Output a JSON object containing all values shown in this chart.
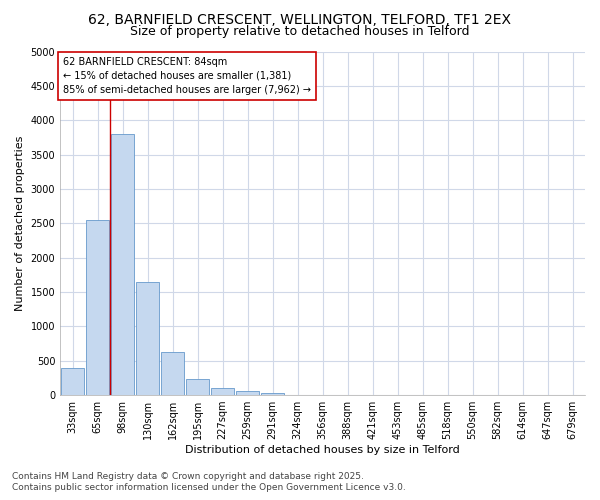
{
  "title_line1": "62, BARNFIELD CRESCENT, WELLINGTON, TELFORD, TF1 2EX",
  "title_line2": "Size of property relative to detached houses in Telford",
  "xlabel": "Distribution of detached houses by size in Telford",
  "ylabel": "Number of detached properties",
  "categories": [
    "33sqm",
    "65sqm",
    "98sqm",
    "130sqm",
    "162sqm",
    "195sqm",
    "227sqm",
    "259sqm",
    "291sqm",
    "324sqm",
    "356sqm",
    "388sqm",
    "421sqm",
    "453sqm",
    "485sqm",
    "518sqm",
    "550sqm",
    "582sqm",
    "614sqm",
    "647sqm",
    "679sqm"
  ],
  "bar_values": [
    390,
    2550,
    3800,
    1650,
    620,
    240,
    105,
    55,
    30,
    0,
    0,
    0,
    0,
    0,
    0,
    0,
    0,
    0,
    0,
    0,
    0
  ],
  "bar_color": "#c5d8ef",
  "bar_edge_color": "#6699cc",
  "background_color": "#ffffff",
  "grid_color": "#d0d8e8",
  "vline_x_idx": 1.5,
  "vline_color": "#cc0000",
  "annotation_text": "62 BARNFIELD CRESCENT: 84sqm\n← 15% of detached houses are smaller (1,381)\n85% of semi-detached houses are larger (7,962) →",
  "annotation_box_color": "#cc0000",
  "annotation_bg": "#ffffff",
  "ylim": [
    0,
    5000
  ],
  "yticks": [
    0,
    500,
    1000,
    1500,
    2000,
    2500,
    3000,
    3500,
    4000,
    4500,
    5000
  ],
  "footer_line1": "Contains HM Land Registry data © Crown copyright and database right 2025.",
  "footer_line2": "Contains public sector information licensed under the Open Government Licence v3.0.",
  "title_fontsize": 10,
  "subtitle_fontsize": 9,
  "axis_label_fontsize": 8,
  "tick_fontsize": 7,
  "annotation_fontsize": 7,
  "footer_fontsize": 6.5
}
